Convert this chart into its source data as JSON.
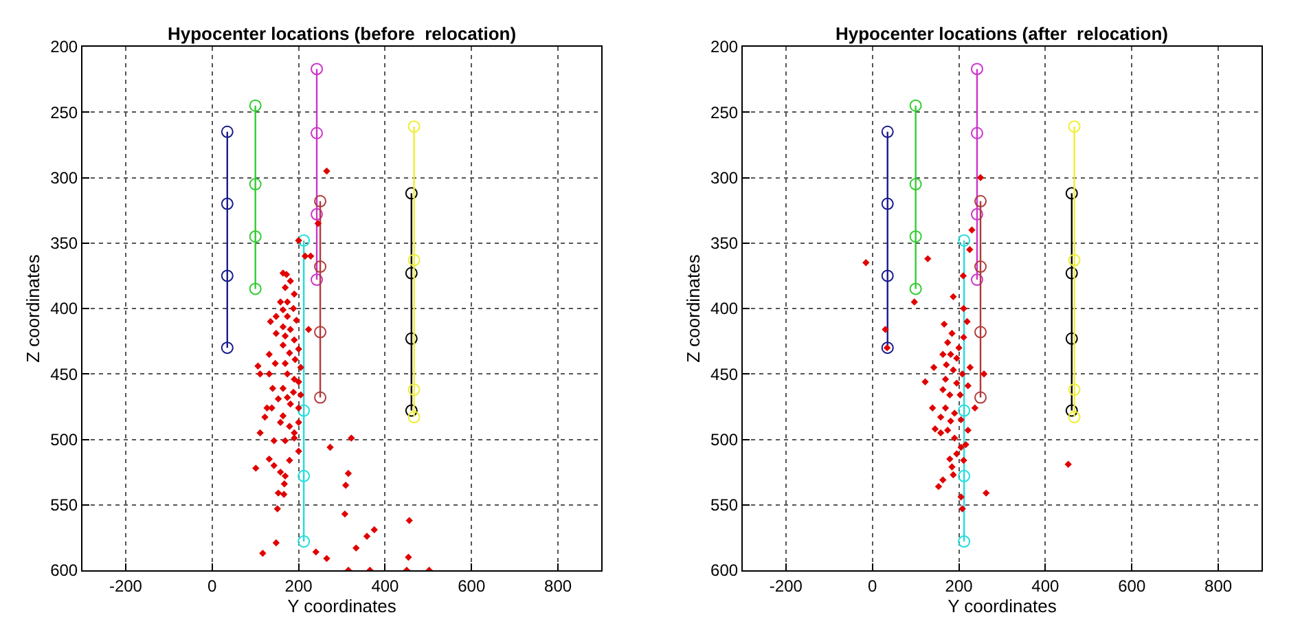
{
  "chart_data": [
    {
      "type": "scatter",
      "title": "Hypocenter locations (before  relocation)",
      "xlabel": "Y coordinates",
      "ylabel": "Z coordinates",
      "xlim": [
        -300,
        900
      ],
      "xticks": [
        -200,
        0,
        200,
        400,
        600,
        800
      ],
      "ylim": [
        600,
        200
      ],
      "yticks": [
        200,
        250,
        300,
        350,
        400,
        450,
        500,
        550,
        600
      ],
      "grid": true,
      "series": [
        {
          "type": "line",
          "marker": "circle",
          "color": "#1a1a8c",
          "x": [
            35,
            35,
            35,
            35
          ],
          "values": [
            265,
            320,
            375,
            430
          ]
        },
        {
          "type": "line",
          "marker": "circle",
          "color": "#33cc33",
          "x": [
            100,
            100,
            100,
            100
          ],
          "values": [
            245,
            305,
            345,
            385
          ]
        },
        {
          "type": "line",
          "marker": "circle",
          "color": "#cc33cc",
          "x": [
            242,
            242,
            242,
            242
          ],
          "values": [
            217,
            266,
            328,
            378
          ]
        },
        {
          "type": "line",
          "marker": "circle",
          "color": "#b03a3a",
          "x": [
            250,
            250,
            250,
            250
          ],
          "values": [
            318,
            368,
            418,
            468
          ]
        },
        {
          "type": "line",
          "marker": "circle",
          "color": "#22dddd",
          "x": [
            212,
            212,
            212,
            212
          ],
          "values": [
            348,
            478,
            528,
            578
          ]
        },
        {
          "type": "line",
          "marker": "circle",
          "color": "#000000",
          "x": [
            461,
            461,
            461,
            461
          ],
          "values": [
            312,
            373,
            423,
            478
          ]
        },
        {
          "type": "line",
          "marker": "circle",
          "color": "#eeee33",
          "x": [
            467,
            467,
            467,
            467
          ],
          "values": [
            261,
            363,
            462,
            483
          ]
        },
        {
          "marker": "diamond",
          "color": "#e00000",
          "x": [
            265,
            245,
            200,
            215,
            228,
            164,
            172,
            181,
            169,
            190,
            158,
            174,
            188,
            164,
            148,
            174,
            195,
            135,
            164,
            181,
            223,
            148,
            169,
            190,
            164,
            200,
            132,
            179,
            192,
            169,
            106,
            146,
            205,
            111,
            132,
            174,
            190,
            200,
            140,
            164,
            188,
            205,
            174,
            153,
            127,
            138,
            181,
            200,
            122,
            164,
            158,
            179,
            200,
            190,
            111,
            143,
            169,
            190,
            200,
            132,
            101,
            143,
            179,
            158,
            169,
            167,
            153,
            166,
            151,
            148,
            117,
            322,
            273,
            315,
            309,
            307,
            375,
            358,
            333,
            240,
            265,
            315,
            365,
            456,
            454,
            450,
            502
          ],
          "values": [
            295,
            335,
            348,
            360,
            360,
            373,
            374,
            379,
            384,
            389,
            395,
            395,
            400,
            401,
            406,
            406,
            409,
            410,
            414,
            416,
            416,
            419,
            421,
            424,
            428,
            431,
            435,
            434,
            439,
            442,
            444,
            442,
            445,
            450,
            450,
            450,
            454,
            456,
            461,
            461,
            464,
            466,
            468,
            469,
            476,
            476,
            473,
            476,
            483,
            482,
            487,
            490,
            487,
            495,
            495,
            501,
            501,
            499,
            509,
            515,
            522,
            520,
            516,
            525,
            528,
            534,
            541,
            542,
            553,
            579,
            587,
            499,
            506,
            526,
            535,
            557,
            569,
            574,
            583,
            586,
            591,
            600,
            600,
            562,
            590,
            600,
            600
          ]
        }
      ]
    },
    {
      "type": "scatter",
      "title": "Hypocenter locations (after  relocation)",
      "xlabel": "Y coordinates",
      "ylabel": "Z coordinates",
      "xlim": [
        -300,
        900
      ],
      "xticks": [
        -200,
        0,
        200,
        400,
        600,
        800
      ],
      "ylim": [
        600,
        200
      ],
      "yticks": [
        200,
        250,
        300,
        350,
        400,
        450,
        500,
        550,
        600
      ],
      "grid": true,
      "series": [
        {
          "type": "line",
          "marker": "circle",
          "color": "#1a1a8c",
          "x": [
            35,
            35,
            35,
            35
          ],
          "values": [
            265,
            320,
            375,
            430
          ]
        },
        {
          "type": "line",
          "marker": "circle",
          "color": "#33cc33",
          "x": [
            100,
            100,
            100,
            100
          ],
          "values": [
            245,
            305,
            345,
            385
          ]
        },
        {
          "type": "line",
          "marker": "circle",
          "color": "#cc33cc",
          "x": [
            242,
            242,
            242,
            242
          ],
          "values": [
            217,
            266,
            328,
            378
          ]
        },
        {
          "type": "line",
          "marker": "circle",
          "color": "#b03a3a",
          "x": [
            250,
            250,
            250,
            250
          ],
          "values": [
            318,
            368,
            418,
            468
          ]
        },
        {
          "type": "line",
          "marker": "circle",
          "color": "#22dddd",
          "x": [
            212,
            212,
            212,
            212
          ],
          "values": [
            348,
            478,
            528,
            578
          ]
        },
        {
          "type": "line",
          "marker": "circle",
          "color": "#000000",
          "x": [
            461,
            461,
            461,
            461
          ],
          "values": [
            312,
            373,
            423,
            478
          ]
        },
        {
          "type": "line",
          "marker": "circle",
          "color": "#eeee33",
          "x": [
            467,
            467,
            467,
            467
          ],
          "values": [
            261,
            363,
            462,
            483
          ]
        },
        {
          "marker": "diamond",
          "color": "#e00000",
          "x": [
            250,
            230,
            225,
            210,
            -15,
            128,
            97,
            30,
            34,
            187,
            211,
            219,
            166,
            184,
            211,
            174,
            200,
            163,
            181,
            195,
            226,
            142,
            171,
            187,
            258,
            208,
            122,
            169,
            195,
            221,
            163,
            179,
            203,
            139,
            169,
            190,
            237,
            158,
            181,
            205,
            145,
            174,
            221,
            158,
            190,
            205,
            216,
            195,
            179,
            211,
            184,
            163,
            153,
            187,
            263,
            205,
            208,
            453
          ],
          "values": [
            300,
            340,
            355,
            375,
            365,
            362,
            395,
            416,
            430,
            391,
            400,
            410,
            412,
            419,
            422,
            426,
            430,
            435,
            435,
            438,
            445,
            445,
            443,
            447,
            450,
            450,
            456,
            454,
            457,
            459,
            462,
            466,
            466,
            476,
            476,
            480,
            476,
            483,
            486,
            485,
            492,
            493,
            493,
            495,
            499,
            506,
            504,
            511,
            515,
            516,
            521,
            531,
            536,
            527,
            541,
            544,
            553,
            519
          ]
        }
      ]
    }
  ]
}
